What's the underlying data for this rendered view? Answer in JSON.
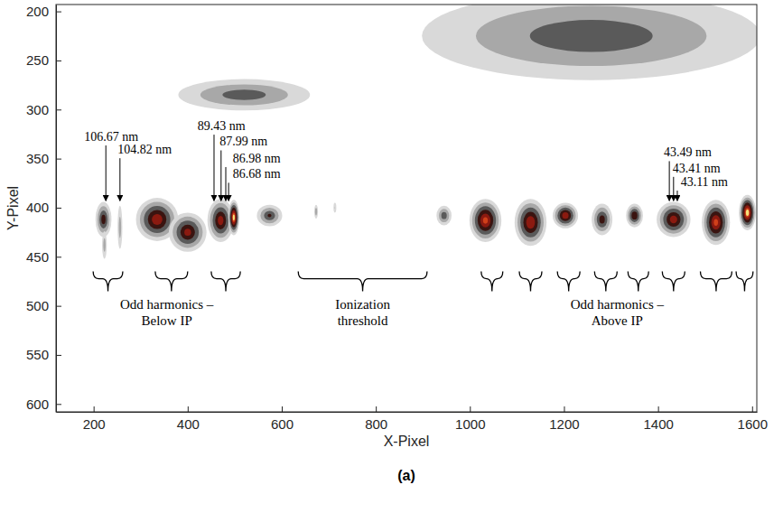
{
  "chart_data": {
    "type": "contour",
    "xlabel": "X-Pixel",
    "ylabel": "Y-Pixel",
    "caption": "(a)",
    "xlim": [
      120,
      1610
    ],
    "ylim": [
      193,
      608
    ],
    "xticks": [
      200,
      400,
      600,
      800,
      1000,
      1200,
      1400,
      1600
    ],
    "yticks": [
      200,
      250,
      300,
      350,
      400,
      450,
      500,
      550,
      600
    ],
    "blobs": [
      {
        "x": 1258,
        "y": 225,
        "rx": 360,
        "ry": 45,
        "intensity": 0.5
      },
      {
        "x": 520,
        "y": 285,
        "rx": 140,
        "ry": 16,
        "intensity": 0.48
      },
      {
        "x": 221,
        "y": 412,
        "rx": 17,
        "ry": 18,
        "intensity": 0.62
      },
      {
        "x": 223,
        "y": 438,
        "rx": 5,
        "ry": 14,
        "intensity": 0.35
      },
      {
        "x": 256,
        "y": 420,
        "rx": 5,
        "ry": 22,
        "intensity": 0.35
      },
      {
        "x": 335,
        "y": 412,
        "rx": 45,
        "ry": 22,
        "intensity": 0.78
      },
      {
        "x": 400,
        "y": 425,
        "rx": 40,
        "ry": 20,
        "intensity": 0.72
      },
      {
        "x": 470,
        "y": 413,
        "rx": 28,
        "ry": 22,
        "intensity": 0.75
      },
      {
        "x": 498,
        "y": 410,
        "rx": 12,
        "ry": 18,
        "intensity": 0.97
      },
      {
        "x": 574,
        "y": 408,
        "rx": 27,
        "ry": 11,
        "intensity": 0.55
      },
      {
        "x": 673,
        "y": 404,
        "rx": 4,
        "ry": 7,
        "intensity": 0.38
      },
      {
        "x": 713,
        "y": 400,
        "rx": 3,
        "ry": 5,
        "intensity": 0.25
      },
      {
        "x": 945,
        "y": 408,
        "rx": 16,
        "ry": 10,
        "intensity": 0.5
      },
      {
        "x": 1033,
        "y": 413,
        "rx": 34,
        "ry": 22,
        "intensity": 0.85
      },
      {
        "x": 1129,
        "y": 415,
        "rx": 34,
        "ry": 24,
        "intensity": 0.8
      },
      {
        "x": 1203,
        "y": 408,
        "rx": 27,
        "ry": 13,
        "intensity": 0.78
      },
      {
        "x": 1281,
        "y": 412,
        "rx": 22,
        "ry": 16,
        "intensity": 0.62
      },
      {
        "x": 1350,
        "y": 408,
        "rx": 18,
        "ry": 12,
        "intensity": 0.68
      },
      {
        "x": 1433,
        "y": 412,
        "rx": 36,
        "ry": 18,
        "intensity": 0.75
      },
      {
        "x": 1523,
        "y": 415,
        "rx": 30,
        "ry": 23,
        "intensity": 0.85
      },
      {
        "x": 1590,
        "y": 405,
        "rx": 18,
        "ry": 18,
        "intensity": 0.98
      }
    ],
    "annotations": [
      {
        "text": "106.67 nm",
        "x": 226,
        "y": 393,
        "text_x": 180,
        "text_y": 332
      },
      {
        "text": "104.82 nm",
        "x": 256,
        "y": 393,
        "text_x": 251,
        "text_y": 345
      },
      {
        "text": "89.43 nm",
        "x": 456,
        "y": 393,
        "text_x": 421,
        "text_y": 321
      },
      {
        "text": "87.99 nm",
        "x": 471,
        "y": 393,
        "text_x": 468,
        "text_y": 337
      },
      {
        "text": "86.98 nm",
        "x": 481,
        "y": 393,
        "text_x": 496,
        "text_y": 354
      },
      {
        "text": "86.68 nm",
        "x": 487,
        "y": 393,
        "text_x": 496,
        "text_y": 370
      },
      {
        "text": "43.49 nm",
        "x": 1424,
        "y": 393,
        "text_x": 1412,
        "text_y": 348
      },
      {
        "text": "43.41 nm",
        "x": 1433,
        "y": 393,
        "text_x": 1431,
        "text_y": 364
      },
      {
        "text": "43.11 nm",
        "x": 1441,
        "y": 393,
        "text_x": 1448,
        "text_y": 378
      }
    ],
    "bracket_groups": [
      {
        "label": [
          "Odd harmonics –",
          "Below IP"
        ],
        "y": 465,
        "ranges": [
          [
            199,
            262
          ],
          [
            331,
            400
          ],
          [
            450,
            512
          ]
        ]
      },
      {
        "label": [
          "Ionization",
          "threshold"
        ],
        "y": 465,
        "ranges": [
          [
            635,
            909
          ]
        ]
      },
      {
        "label": [
          "Odd harmonics –",
          "Above IP"
        ],
        "y": 465,
        "ranges": [
          [
            1024,
            1070
          ],
          [
            1105,
            1153
          ],
          [
            1186,
            1234
          ],
          [
            1265,
            1313
          ],
          [
            1336,
            1380
          ],
          [
            1409,
            1457
          ],
          [
            1490,
            1557
          ],
          [
            1566,
            1602
          ]
        ]
      }
    ]
  }
}
